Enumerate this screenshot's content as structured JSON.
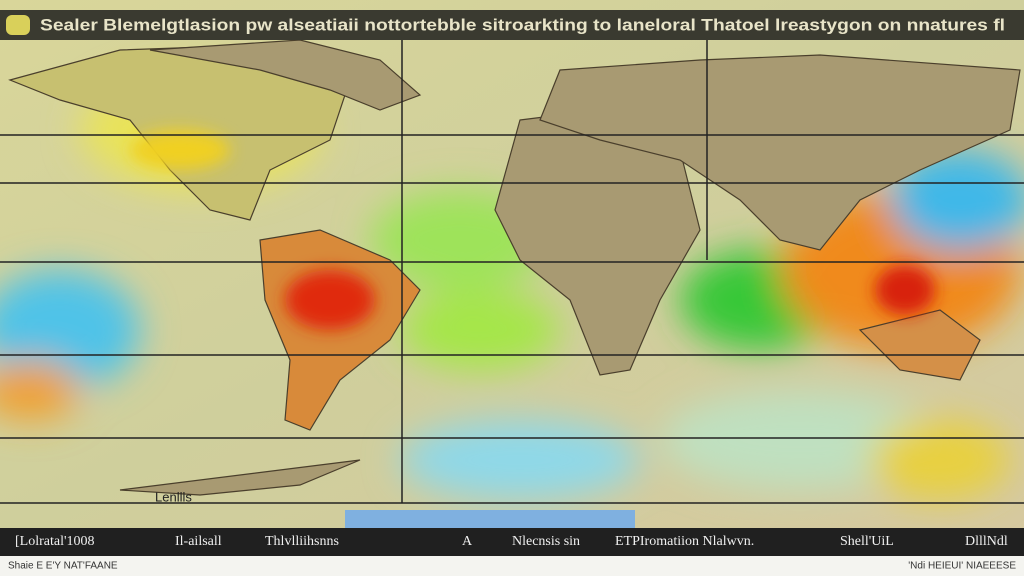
{
  "header": {
    "title": "Sealer Blemelgtlasion pw alseatiaii nottortebble sitroarkting to laneloral Thatoel lreastygon on nnatures fl"
  },
  "map": {
    "label": "Lenllls"
  },
  "footer": {
    "items": [
      "[Lolratal'1008",
      "Il-ailsall",
      "Thlvlliihsnns",
      "A",
      "Nlecnsis sin",
      "ETPIromatiion Nlalwvn.",
      "Shell'UiL",
      "DlllNdl"
    ],
    "notes": [
      "Shaie E E'Y NAT'FAANE",
      "'Ndi HEIEUI' NIAEEESE"
    ]
  }
}
